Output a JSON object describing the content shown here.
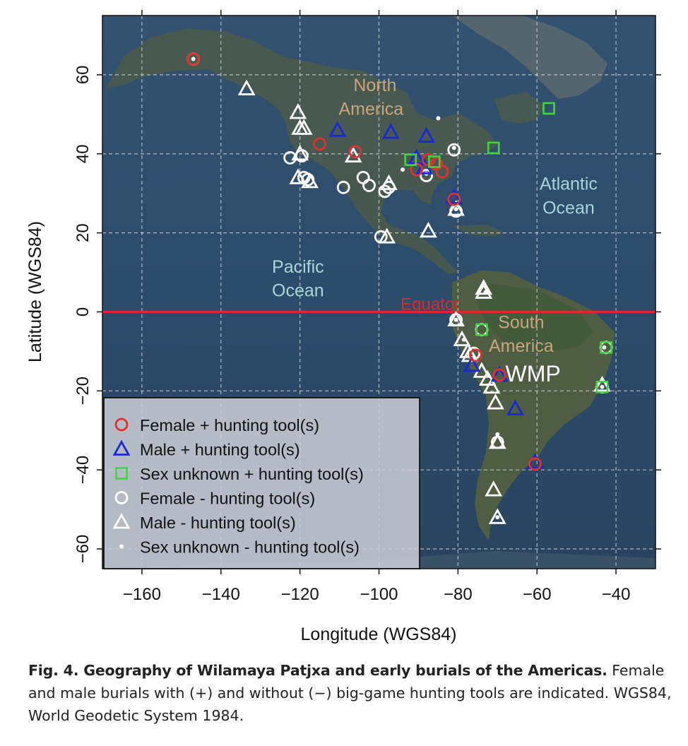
{
  "chart_data": {
    "type": "scatter",
    "xlabel": "Longitude (WGS84)",
    "ylabel": "Latitude (WGS84)",
    "xlim": [
      -170,
      -30
    ],
    "ylim": [
      -65,
      75
    ],
    "xticks": [
      -160,
      -140,
      -120,
      -100,
      -80,
      -60,
      -40
    ],
    "yticks": [
      60,
      40,
      20,
      0,
      -20,
      -40,
      -60
    ],
    "grid": true,
    "legend_placement": "bottom-left",
    "equator": {
      "lat": 0,
      "label": "Equator",
      "color": "#d92b2b"
    },
    "map_labels": [
      {
        "text": "North",
        "lon": -101,
        "lat": 57.5,
        "color": "#c9a57a"
      },
      {
        "text": "America",
        "lon": -102,
        "lat": 51.5,
        "color": "#c9a57a"
      },
      {
        "text": "Atlantic",
        "lon": -52,
        "lat": 32.5,
        "color": "#a9d4d8"
      },
      {
        "text": "Ocean",
        "lon": -52,
        "lat": 26.5,
        "color": "#a9d4d8"
      },
      {
        "text": "Pacific",
        "lon": -120.5,
        "lat": 11.5,
        "color": "#a9d4d8"
      },
      {
        "text": "Ocean",
        "lon": -120.5,
        "lat": 5.5,
        "color": "#a9d4d8"
      },
      {
        "text": "South",
        "lon": -64,
        "lat": -2.5,
        "color": "#c9a57a"
      },
      {
        "text": "America",
        "lon": -64,
        "lat": -8.5,
        "color": "#c9a57a"
      },
      {
        "text": "WMP",
        "lon": -61,
        "lat": -16,
        "color": "#ffffff"
      }
    ],
    "series": [
      {
        "name": "Female + hunting tool(s)",
        "marker": "circle",
        "color": "#e03030",
        "points": [
          [
            -147,
            64
          ],
          [
            -115,
            42.5
          ],
          [
            -106,
            40.5
          ],
          [
            -90.5,
            36
          ],
          [
            -87.5,
            38.5
          ],
          [
            -85.5,
            37.5
          ],
          [
            -84,
            35.5
          ],
          [
            -81,
            28.5
          ],
          [
            -75.5,
            -11
          ],
          [
            -69.5,
            -16
          ],
          [
            -60.5,
            -38.5
          ]
        ]
      },
      {
        "name": "Male + hunting tool(s)",
        "marker": "triangle",
        "color": "#1a28d8",
        "points": [
          [
            -110.5,
            46
          ],
          [
            -97,
            45.5
          ],
          [
            -88,
            44.5
          ],
          [
            -90.5,
            39
          ],
          [
            -88.5,
            36.5
          ],
          [
            -81,
            29
          ],
          [
            -76.5,
            -13.5
          ],
          [
            -69.5,
            -16
          ],
          [
            -65.5,
            -24.5
          ],
          [
            -60.5,
            -38
          ]
        ]
      },
      {
        "name": "Sex unknown + hunting tool(s)",
        "marker": "square",
        "color": "#44d244",
        "points": [
          [
            -57,
            51.5
          ],
          [
            -71,
            41.5
          ],
          [
            -92,
            38.5
          ],
          [
            -86,
            38
          ],
          [
            -74,
            -4.5
          ],
          [
            -42.5,
            -9
          ],
          [
            -43.5,
            -19
          ]
        ]
      },
      {
        "name": "Female - hunting tool(s)",
        "marker": "circle",
        "color": "#ffffff",
        "points": [
          [
            -147,
            64
          ],
          [
            -122.5,
            39
          ],
          [
            -119.5,
            39.5
          ],
          [
            -119,
            34
          ],
          [
            -118,
            33.5
          ],
          [
            -109,
            31.5
          ],
          [
            -104,
            34
          ],
          [
            -102.5,
            32
          ],
          [
            -98.5,
            30.5
          ],
          [
            -97.5,
            31.5
          ],
          [
            -99.5,
            19
          ],
          [
            -88,
            34.5
          ],
          [
            -81,
            41
          ],
          [
            -80.5,
            25.5
          ],
          [
            -80.5,
            -2
          ],
          [
            -74,
            -4.5
          ],
          [
            -76,
            -10.5
          ],
          [
            -70,
            -33
          ],
          [
            -43.5,
            -19
          ],
          [
            -42.5,
            -9
          ]
        ]
      },
      {
        "name": "Male - hunting tool(s)",
        "marker": "triangle",
        "color": "#ffffff",
        "points": [
          [
            -133.5,
            56.5
          ],
          [
            -120.5,
            50.5
          ],
          [
            -120,
            46.5
          ],
          [
            -119,
            46.5
          ],
          [
            -120,
            40
          ],
          [
            -106.5,
            39.5
          ],
          [
            -120.5,
            34
          ],
          [
            -117.5,
            33
          ],
          [
            -97.5,
            32.5
          ],
          [
            -98,
            19
          ],
          [
            -87.5,
            20.5
          ],
          [
            -80.5,
            26
          ],
          [
            -73.5,
            6
          ],
          [
            -73.5,
            5
          ],
          [
            -80.5,
            -2
          ],
          [
            -79,
            -7
          ],
          [
            -77.5,
            -10
          ],
          [
            -77,
            -11
          ],
          [
            -74,
            -15
          ],
          [
            -72.5,
            -17
          ],
          [
            -71.5,
            -19
          ],
          [
            -70.5,
            -23
          ],
          [
            -70,
            -33
          ],
          [
            -71,
            -45
          ],
          [
            -70,
            -52
          ],
          [
            -43.5,
            -18.5
          ]
        ]
      },
      {
        "name": "Sex unknown - hunting tool(s)",
        "marker": "dot",
        "color": "#ffffff",
        "points": [
          [
            -147,
            64
          ],
          [
            -85,
            49
          ],
          [
            -81,
            41.5
          ],
          [
            -94,
            36
          ],
          [
            -88,
            35
          ],
          [
            -80.5,
            26
          ],
          [
            -73,
            5
          ],
          [
            -80.5,
            -2
          ],
          [
            -78.5,
            -7
          ],
          [
            -70,
            -31
          ],
          [
            -70,
            -52
          ],
          [
            -43,
            -9
          ],
          [
            -43.5,
            -19
          ]
        ]
      }
    ]
  },
  "caption": {
    "bold": "Fig. 4. Geography of Wilamaya Patjxa and early burials of the Americas.",
    "text": "Female and male burials with (+) and without (−) big-game hunting tools are indicated. WGS84, World Geodetic System 1984."
  }
}
